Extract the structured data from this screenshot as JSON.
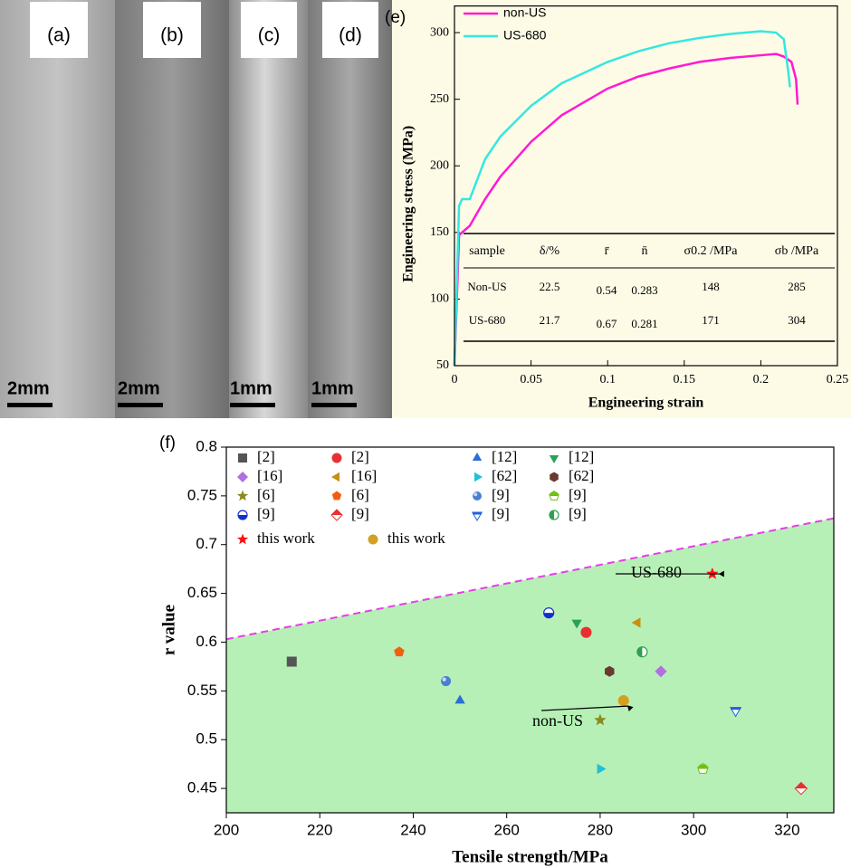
{
  "photos": [
    {
      "label": "(a)",
      "scale_bar": "2mm"
    },
    {
      "label": "(b)",
      "scale_bar": "2mm"
    },
    {
      "label": "(c)",
      "scale_bar": "1mm"
    },
    {
      "label": "(d)",
      "scale_bar": "1mm"
    }
  ],
  "chart_data": [
    {
      "type": "line",
      "panel": "(e)",
      "x_label": "Engineering strain",
      "y_label": "Engineering stress (MPa)",
      "xlim": [
        0,
        0.25
      ],
      "xticks": [
        0,
        0.05,
        0.1,
        0.15,
        0.2,
        0.25
      ],
      "ylim": [
        50,
        320
      ],
      "yticks": [
        50,
        100,
        150,
        200,
        250,
        300
      ],
      "background": "#fdfbe6",
      "legend": "upper left",
      "series": [
        {
          "name": "non-US",
          "color": "#ff19d4",
          "x": [
            0,
            0.003,
            0.01,
            0.02,
            0.03,
            0.05,
            0.07,
            0.1,
            0.12,
            0.14,
            0.16,
            0.18,
            0.2,
            0.21,
            0.215,
            0.22,
            0.223,
            0.224
          ],
          "values": [
            50,
            148,
            155,
            175,
            192,
            218,
            238,
            258,
            267,
            273,
            278,
            281,
            283,
            284,
            282,
            278,
            265,
            246
          ]
        },
        {
          "name": "US-680",
          "color": "#33e8e0",
          "x": [
            0,
            0.003,
            0.005,
            0.01,
            0.015,
            0.02,
            0.03,
            0.05,
            0.07,
            0.1,
            0.12,
            0.14,
            0.16,
            0.18,
            0.2,
            0.21,
            0.215,
            0.218,
            0.219
          ],
          "values": [
            50,
            170,
            175,
            175,
            190,
            205,
            222,
            245,
            262,
            278,
            286,
            292,
            296,
            299,
            301,
            300,
            295,
            270,
            259
          ]
        }
      ],
      "table": {
        "columns": [
          "sample",
          "δ/%",
          "r̄",
          "n̄",
          "σ0.2 /MPa",
          "σb /MPa"
        ],
        "rows": [
          [
            "Non-US",
            22.5,
            0.54,
            0.283,
            148,
            285
          ],
          [
            "US-680",
            21.7,
            0.67,
            0.281,
            171,
            304
          ]
        ]
      }
    },
    {
      "type": "scatter",
      "panel": "(f)",
      "x_label": "Tensile strength/MPa",
      "y_label": "r value",
      "xlim": [
        200,
        330
      ],
      "xticks": [
        200,
        220,
        240,
        260,
        280,
        300,
        320
      ],
      "ylim": [
        0.425,
        0.8
      ],
      "yticks": [
        0.45,
        0.5,
        0.55,
        0.6,
        0.65,
        0.7,
        0.75,
        0.8
      ],
      "boundary": {
        "x": [
          200,
          330
        ],
        "values": [
          0.603,
          0.727
        ],
        "color": "#e83ce8",
        "fill": "#b6f0b6"
      },
      "legend": "upper left",
      "series": [
        {
          "name": "[2]",
          "color": "#555555",
          "marker": "square",
          "x": [
            214
          ],
          "values": [
            0.58
          ]
        },
        {
          "name": "[2]",
          "color": "#e83030",
          "marker": "circle",
          "x": [
            277
          ],
          "values": [
            0.61
          ]
        },
        {
          "name": "[12]",
          "color": "#2a6fd6",
          "marker": "triangle-up",
          "x": [
            250
          ],
          "values": [
            0.54
          ]
        },
        {
          "name": "[12]",
          "color": "#2aa05a",
          "marker": "triangle-down",
          "x": [
            275
          ],
          "values": [
            0.62
          ]
        },
        {
          "name": "[16]",
          "color": "#b070e0",
          "marker": "diamond",
          "x": [
            293
          ],
          "values": [
            0.57
          ]
        },
        {
          "name": "[16]",
          "color": "#c89010",
          "marker": "triangle-left",
          "x": [
            288
          ],
          "values": [
            0.62
          ]
        },
        {
          "name": "[62]",
          "color": "#20c0d8",
          "marker": "triangle-right",
          "x": [
            280
          ],
          "values": [
            0.47
          ]
        },
        {
          "name": "[62]",
          "color": "#6a3a30",
          "marker": "hexagon",
          "x": [
            282
          ],
          "values": [
            0.57
          ]
        },
        {
          "name": "[6]",
          "color": "#8a8a20",
          "marker": "star",
          "x": [
            280
          ],
          "values": [
            0.52
          ]
        },
        {
          "name": "[6]",
          "color": "#f06010",
          "marker": "pentagon",
          "x": [
            237
          ],
          "values": [
            0.59
          ]
        },
        {
          "name": "[9]",
          "color": "#4a80d0",
          "marker": "sphere",
          "x": [
            247
          ],
          "values": [
            0.56
          ]
        },
        {
          "name": "[9]",
          "color": "#70c010",
          "marker": "half-top",
          "x": [
            302
          ],
          "values": [
            0.47
          ]
        },
        {
          "name": "[9]",
          "color": "#1030d0",
          "marker": "half-circle",
          "x": [
            269
          ],
          "values": [
            0.63
          ]
        },
        {
          "name": "[9]",
          "color": "#e83030",
          "marker": "half-diamond",
          "x": [
            323
          ],
          "values": [
            0.45
          ]
        },
        {
          "name": "[9]",
          "color": "#2060e0",
          "marker": "triangle-down-open",
          "x": [
            309
          ],
          "values": [
            0.53
          ]
        },
        {
          "name": "[9]",
          "color": "#30a050",
          "marker": "half-left",
          "x": [
            289
          ],
          "values": [
            0.59
          ]
        },
        {
          "name": "this work",
          "color": "#ff1010",
          "marker": "star",
          "x": [
            304
          ],
          "values": [
            0.67
          ]
        },
        {
          "name": "this work",
          "color": "#d4a020",
          "marker": "circle",
          "x": [
            285
          ],
          "values": [
            0.54
          ]
        }
      ],
      "annotations": [
        "US-680",
        "non-US"
      ]
    }
  ]
}
